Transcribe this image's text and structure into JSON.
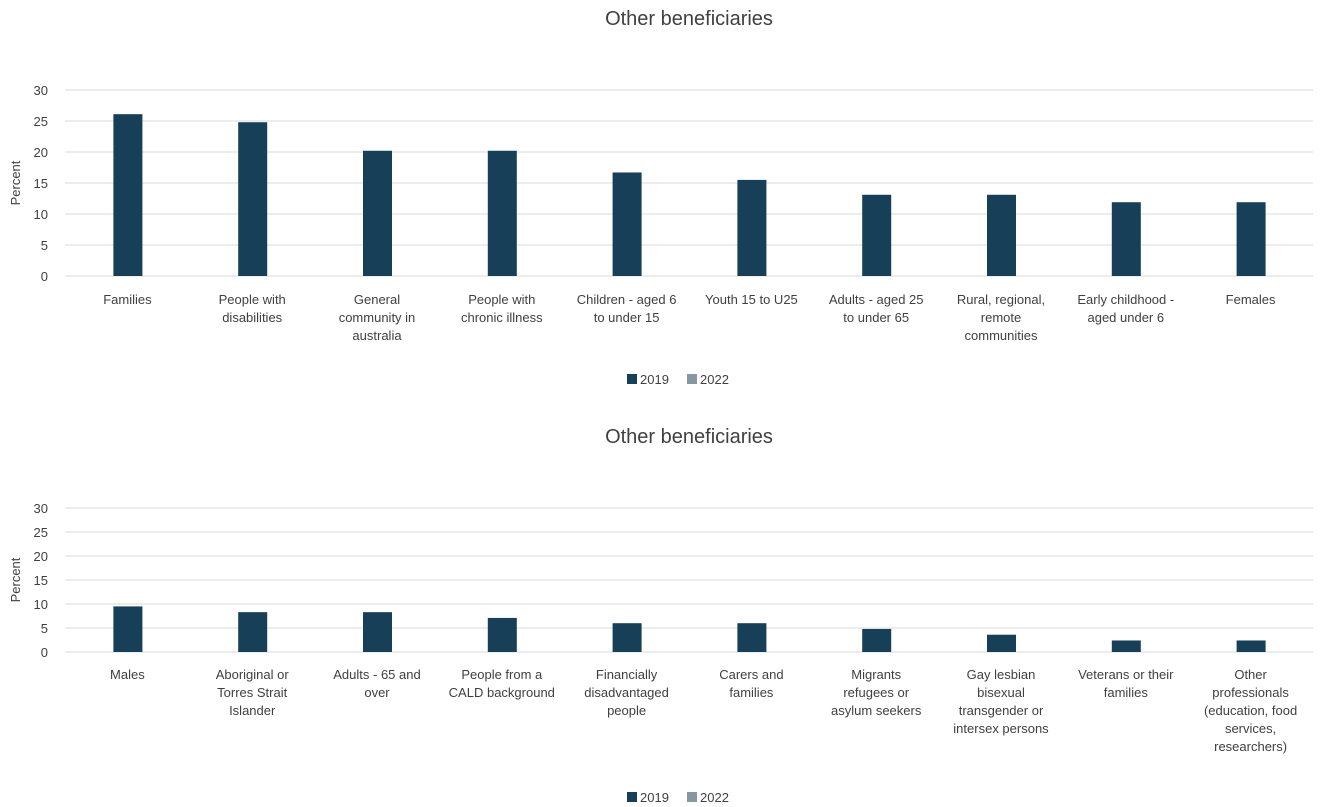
{
  "colors": {
    "s2019": "#173f57",
    "s2022": "#8497a3"
  },
  "chart_data": [
    {
      "type": "bar",
      "title": "Other beneficiaries",
      "ylabel": "Percent",
      "ylim": [
        0,
        30
      ],
      "yticks": [
        "0",
        "5",
        "10",
        "15",
        "20",
        "25",
        "30"
      ],
      "grid": true,
      "legend_position": "bottom",
      "categories": [
        [
          "Families"
        ],
        [
          "People with",
          "disabilities"
        ],
        [
          "General",
          "community in",
          "australia"
        ],
        [
          "People with",
          "chronic illness"
        ],
        [
          "Children - aged 6",
          "to under 15"
        ],
        [
          "Youth 15 to U25"
        ],
        [
          "Adults - aged 25",
          "to under 65"
        ],
        [
          "Rural, regional,",
          "remote",
          "communities"
        ],
        [
          "Early childhood -",
          "aged under 6"
        ],
        [
          "Females"
        ]
      ],
      "series": [
        {
          "name": "2019",
          "values": [
            26.1,
            24.8,
            20.2,
            20.2,
            16.7,
            15.5,
            13.1,
            13.1,
            11.9,
            11.9
          ]
        },
        {
          "name": "2022",
          "values": [
            0,
            0,
            0,
            0,
            0,
            0,
            0,
            0,
            0,
            0
          ]
        }
      ]
    },
    {
      "type": "bar",
      "title": "Other beneficiaries",
      "ylabel": "Percent",
      "ylim": [
        0,
        30
      ],
      "yticks": [
        "0",
        "5",
        "10",
        "15",
        "20",
        "25",
        "30"
      ],
      "grid": true,
      "legend_position": "bottom",
      "categories": [
        [
          "Males"
        ],
        [
          "Aboriginal or",
          "Torres Strait",
          "Islander"
        ],
        [
          "Adults - 65 and",
          "over"
        ],
        [
          "People from a",
          "CALD background"
        ],
        [
          "Financially",
          "disadvantaged",
          "people"
        ],
        [
          "Carers and",
          "families"
        ],
        [
          "Migrants",
          "refugees or",
          "asylum seekers"
        ],
        [
          "Gay lesbian",
          "bisexual",
          "transgender or",
          "intersex persons"
        ],
        [
          "Veterans or their",
          "families"
        ],
        [
          "Other",
          "professionals",
          "(education, food",
          "services,",
          "researchers)"
        ]
      ],
      "series": [
        {
          "name": "2019",
          "values": [
            9.5,
            8.3,
            8.3,
            7.1,
            6.0,
            6.0,
            4.8,
            3.6,
            2.4,
            2.4
          ]
        },
        {
          "name": "2022",
          "values": [
            0,
            0,
            0,
            0,
            0,
            0,
            0,
            0,
            0,
            0
          ]
        }
      ]
    }
  ]
}
